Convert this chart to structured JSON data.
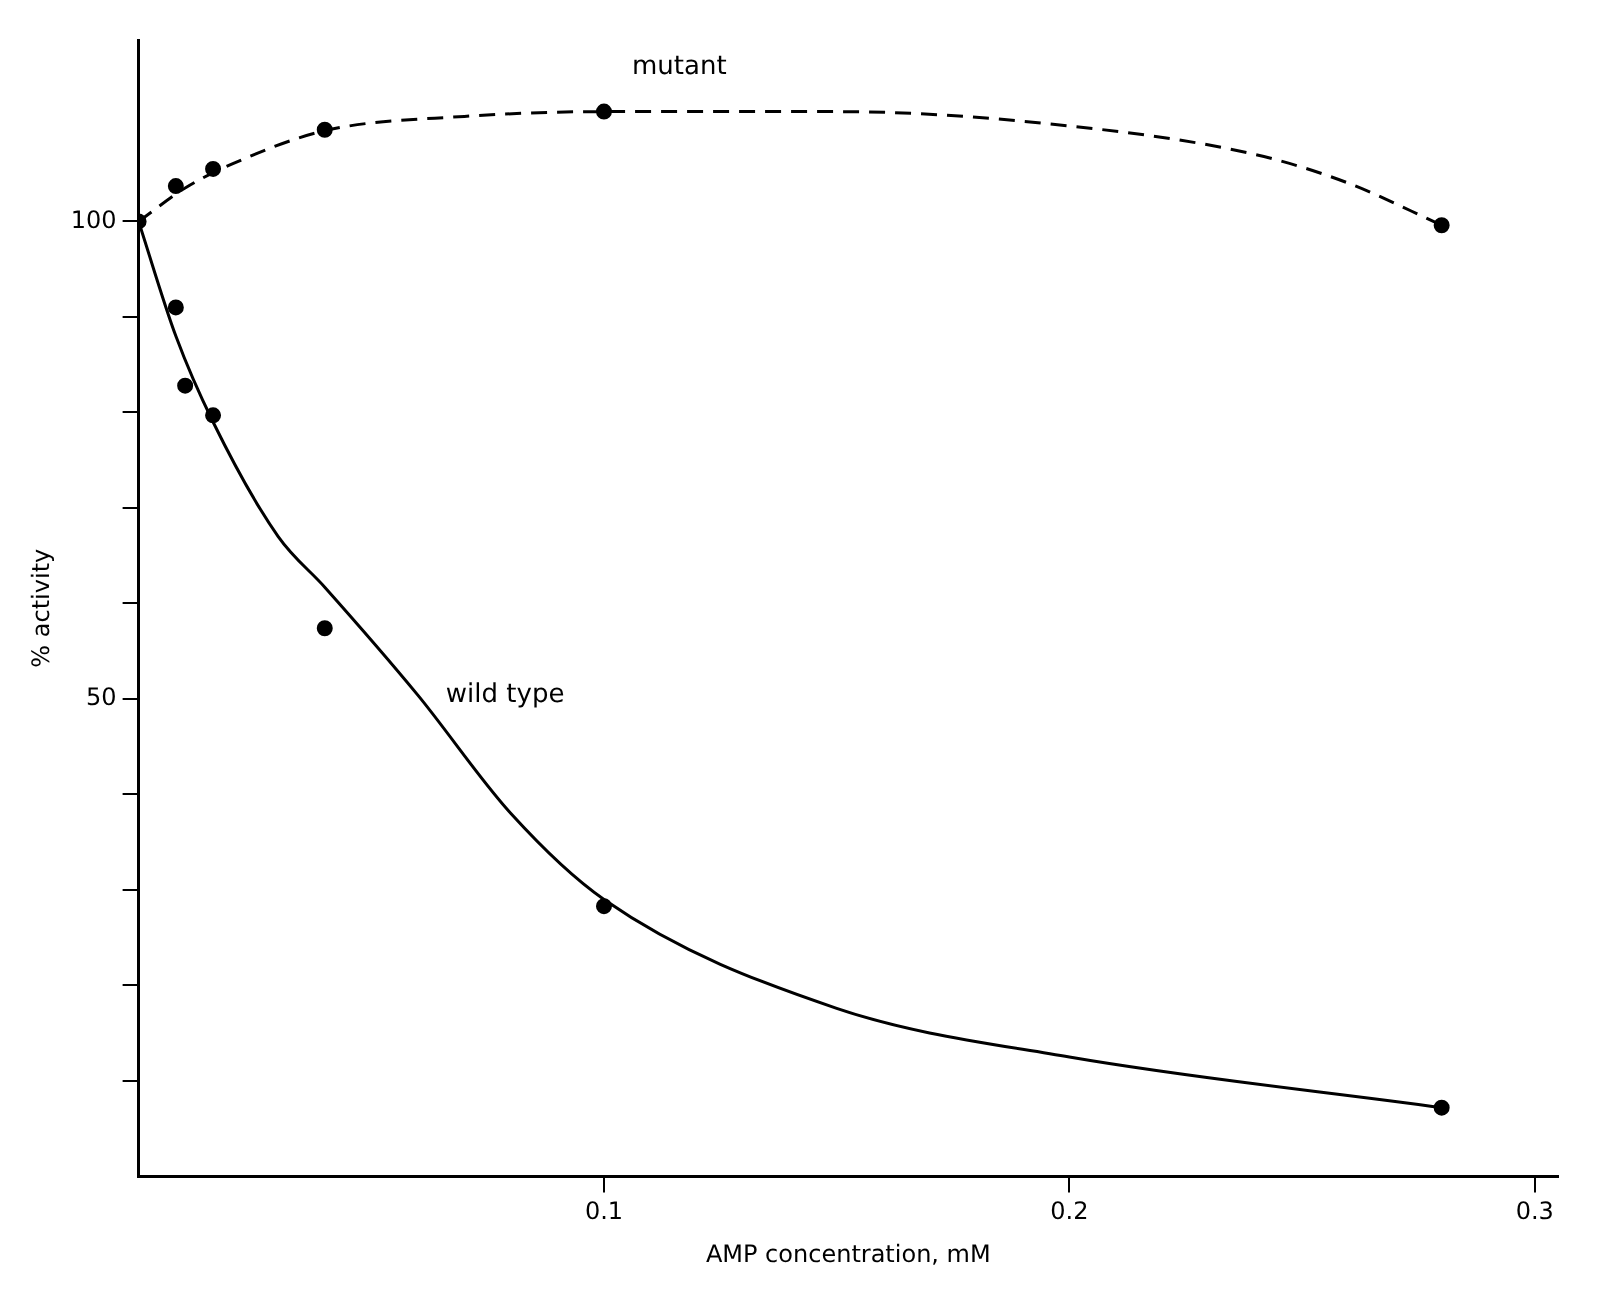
{
  "chart_data": {
    "type": "scatter",
    "xlabel": "AMP concentration, mM",
    "ylabel": "% activity",
    "xlim": [
      0,
      0.305
    ],
    "ylim": [
      0,
      119
    ],
    "xticks": [
      0.1,
      0.2,
      0.3
    ],
    "yticks": [
      {
        "value": 10,
        "label": null
      },
      {
        "value": 20,
        "label": null
      },
      {
        "value": 30,
        "label": null
      },
      {
        "value": 40,
        "label": null
      },
      50,
      {
        "value": 60,
        "label": null
      },
      {
        "value": 70,
        "label": null
      },
      {
        "value": 80,
        "label": null
      },
      {
        "value": 90,
        "label": null
      },
      100
    ],
    "grid": false,
    "legend": false,
    "marker": "circle",
    "series": [
      {
        "type": "line",
        "name": "mutant",
        "color": "#000000",
        "line_style": "dashed",
        "marker": "none",
        "x": [
          0,
          0.01,
          0.02,
          0.04,
          0.07,
          0.1,
          0.15,
          0.2,
          0.24,
          0.26,
          0.28
        ],
        "values": [
          100,
          103.5,
          106,
          109.5,
          111,
          111.5,
          111.5,
          110,
          107,
          104,
          99.6
        ]
      },
      {
        "type": "line",
        "name": "wild type",
        "color": "#000000",
        "line_style": "solid",
        "marker": "none",
        "x": [
          0,
          0.008,
          0.016,
          0.03,
          0.04,
          0.06,
          0.08,
          0.1,
          0.15,
          0.2,
          0.28
        ],
        "values": [
          100,
          88,
          79,
          67,
          61.7,
          50.4,
          38,
          29,
          17.6,
          12.5,
          7.2
        ]
      },
      {
        "color": "#000000",
        "x": [
          0.008,
          0.016,
          0.04,
          0.1,
          0.28
        ],
        "values": [
          103.7,
          105.5,
          109.6,
          111.5,
          99.6
        ]
      },
      {
        "color": "#000000",
        "x": [
          0,
          0.008,
          0.01,
          0.016,
          0.04,
          0.1,
          0.28
        ],
        "values": [
          100,
          91,
          82.8,
          79.7,
          57.4,
          28.3,
          7.2
        ]
      }
    ]
  }
}
